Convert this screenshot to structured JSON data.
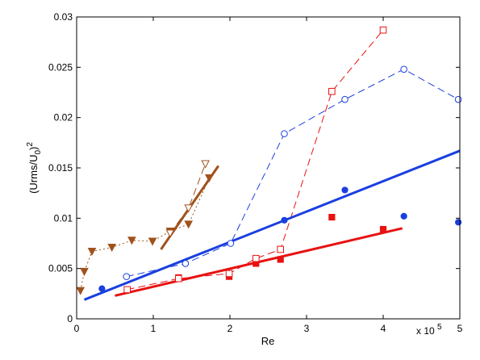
{
  "chart_data": {
    "type": "scatter",
    "xlabel": "Re",
    "ylabel_main": "(Urms/U",
    "ylabel_sub": "0",
    "ylabel_tail": ")",
    "ylabel_sup": "2",
    "x_multiplier_base": "x 10",
    "x_multiplier_exp": "5",
    "xlim": [
      0,
      5
    ],
    "ylim": [
      0,
      0.03
    ],
    "xticks": [
      0,
      1,
      2,
      3,
      4,
      5
    ],
    "xtick_labels": [
      "0",
      "1",
      "2",
      "3",
      "4",
      "5"
    ],
    "yticks": [
      0,
      0.005,
      0.01,
      0.015,
      0.02,
      0.025,
      0.03
    ],
    "ytick_labels": [
      "0",
      "0.005",
      "0.01",
      "0.015",
      "0.02",
      "0.025",
      "0.03"
    ],
    "grid": false,
    "colors": {
      "blue": "#1a3fe0",
      "red": "#e81212",
      "brown": "#a0521c"
    },
    "series": [
      {
        "style": "filled-circle",
        "color": "blue",
        "connect": "none",
        "x": [
          0.33,
          0.65,
          1.42,
          2.01,
          2.71,
          3.5,
          4.27,
          4.98
        ],
        "y": [
          0.003,
          0.0042,
          0.0055,
          0.0075,
          0.0098,
          0.0128,
          0.0102,
          0.0096
        ]
      },
      {
        "style": "open-circle",
        "color": "blue",
        "connect": "dash",
        "x": [
          0.65,
          1.42,
          2.01,
          2.71,
          3.5,
          4.27,
          4.98
        ],
        "y": [
          0.0042,
          0.0055,
          0.0075,
          0.0184,
          0.0218,
          0.0248,
          0.0218
        ]
      },
      {
        "style": "filled-square",
        "color": "red",
        "connect": "none",
        "x": [
          0.66,
          1.33,
          1.99,
          2.34,
          2.66,
          3.33,
          4.0
        ],
        "y": [
          0.0029,
          0.0041,
          0.0042,
          0.0055,
          0.0059,
          0.0101,
          0.0089
        ]
      },
      {
        "style": "open-square",
        "color": "red",
        "connect": "dash",
        "x": [
          0.66,
          1.33,
          1.99,
          2.34,
          2.66,
          3.33,
          4.0
        ],
        "y": [
          0.0029,
          0.004,
          0.0045,
          0.006,
          0.0069,
          0.0226,
          0.0287
        ]
      },
      {
        "style": "filled-triangle-down",
        "color": "brown",
        "connect": "dot",
        "x": [
          0.05,
          0.1,
          0.2,
          0.46,
          0.72,
          0.99,
          1.22,
          1.46,
          1.73
        ],
        "y": [
          0.0028,
          0.0047,
          0.0067,
          0.0071,
          0.0078,
          0.0077,
          0.0087,
          0.0094,
          0.014
        ]
      },
      {
        "style": "open-triangle-down",
        "color": "brown",
        "connect": "dash",
        "x": [
          1.22,
          1.46,
          1.68
        ],
        "y": [
          0.0085,
          0.011,
          0.0154
        ]
      }
    ],
    "fit_lines": [
      {
        "color": "blue",
        "x": [
          0.1,
          5.0
        ],
        "y": [
          0.0019,
          0.0167
        ]
      },
      {
        "color": "red",
        "x": [
          0.5,
          4.25
        ],
        "y": [
          0.0023,
          0.009
        ]
      },
      {
        "color": "brown",
        "x": [
          1.1,
          1.85
        ],
        "y": [
          0.0069,
          0.0152
        ]
      }
    ]
  }
}
